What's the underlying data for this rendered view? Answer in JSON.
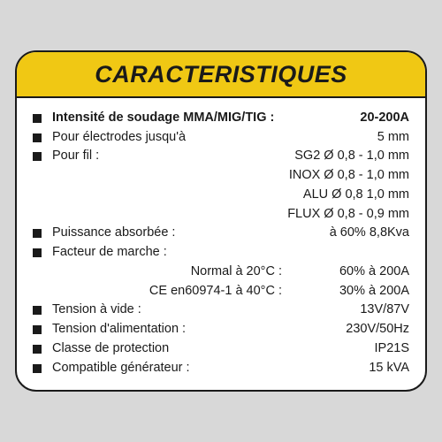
{
  "title": "CARACTERISTIQUES",
  "rows": [
    {
      "label": "Intensité de soudage MMA/MIG/TIG :",
      "value": "20-200A",
      "bold": true
    },
    {
      "label": "Pour électrodes jusqu'à",
      "value": "5 mm"
    },
    {
      "label": "Pour fil :",
      "value": "SG2 Ø 0,8 - 1,0 mm",
      "wire_extra": [
        "INOX Ø 0,8 - 1,0 mm",
        "ALU Ø 0,8   1,0 mm",
        "FLUX Ø 0,8 - 0,9 mm"
      ]
    },
    {
      "label": "Puissance absorbée :",
      "value": "à 60% 8,8Kva"
    },
    {
      "label": "Facteur de marche :",
      "value": "",
      "sub": [
        {
          "sublabel": "Normal à 20°C :",
          "subvalue": "60% à 200A"
        },
        {
          "sublabel": "CE en60974-1 à 40°C :",
          "subvalue": "30% à 200A"
        }
      ]
    },
    {
      "label": "Tension à vide :",
      "value": "13V/87V"
    },
    {
      "label": "Tension d'alimentation :",
      "value": "230V/50Hz"
    },
    {
      "label": "Classe de protection",
      "value": "IP21S"
    },
    {
      "label": "Compatible générateur :",
      "value": "15 kVA"
    }
  ],
  "style": {
    "header_bg": "#f0c814",
    "border_color": "#1a1a1a",
    "panel_bg": "#ffffff",
    "page_bg": "#d8d8d8",
    "border_radius": 24,
    "title_fontsize": 27,
    "row_fontsize": 14.5
  }
}
